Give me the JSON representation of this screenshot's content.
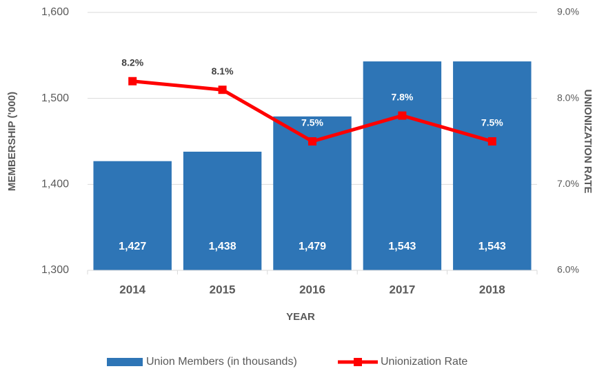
{
  "chart_data": {
    "type": "bar_line",
    "x_label": "YEAR",
    "y_label": "MEMBERSHIP ('000)",
    "y2_label": "UNIONIZATION RATE",
    "categories": [
      "2014",
      "2015",
      "2016",
      "2017",
      "2018"
    ],
    "series": [
      {
        "name": "Union Members (in thousands)",
        "type": "bar",
        "color": "#2e75b6",
        "values": [
          1427,
          1438,
          1479,
          1543,
          1543
        ],
        "value_labels": [
          "1,427",
          "1,438",
          "1,479",
          "1,543",
          "1,543"
        ]
      },
      {
        "name": "Unionization Rate",
        "type": "line",
        "axis": "y2",
        "color": "#ff0000",
        "values": [
          8.2,
          8.1,
          7.5,
          7.8,
          7.5
        ],
        "value_labels": [
          "8.2%",
          "8.1%",
          "7.5%",
          "7.8%",
          "7.5%"
        ]
      }
    ],
    "ylim": [
      1300,
      1600
    ],
    "yticks": [
      {
        "value": 1300,
        "label": "1,300"
      },
      {
        "value": 1400,
        "label": "1,400"
      },
      {
        "value": 1500,
        "label": "1,500"
      },
      {
        "value": 1600,
        "label": "1,600"
      }
    ],
    "y2lim": [
      6,
      9
    ],
    "y2ticks": [
      {
        "value": 6,
        "label": "6.0%"
      },
      {
        "value": 7,
        "label": "7.0%"
      },
      {
        "value": 8,
        "label": "8.0%"
      },
      {
        "value": 9,
        "label": "9.0%"
      }
    ],
    "grid": true,
    "legend": "bottom"
  }
}
